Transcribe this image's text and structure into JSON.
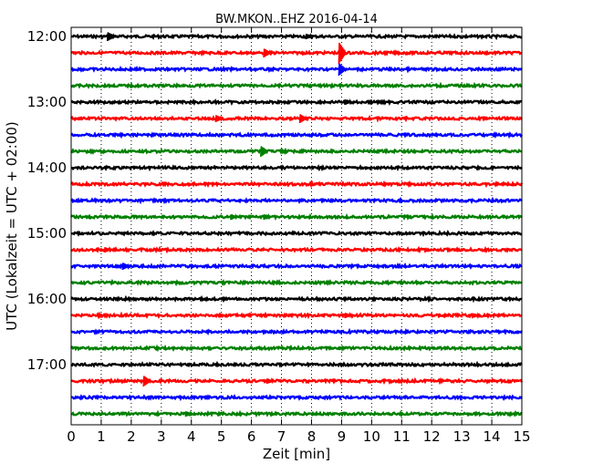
{
  "chart_data": {
    "type": "line",
    "title": "BW.MKON..EHZ 2016-04-14",
    "xlabel": "Zeit  [min]",
    "ylabel": "UTC (Lokalzeit = UTC + 02:00)",
    "xlim": [
      0,
      15
    ],
    "x_ticks": [
      "0",
      "1",
      "2",
      "3",
      "4",
      "5",
      "6",
      "7",
      "8",
      "9",
      "10",
      "11",
      "12",
      "13",
      "14",
      "15"
    ],
    "y_ticks": [
      "12:00",
      "13:00",
      "14:00",
      "15:00",
      "16:00",
      "17:00"
    ],
    "grid": "vertical dotted lines at each minute",
    "trace_colors": [
      "#000000",
      "#ff0000",
      "#0000ff",
      "#008000"
    ],
    "trace_interval_min": 15,
    "traces": [
      {
        "start": "12:00",
        "events": [
          {
            "t": 1.3,
            "amp": 5
          },
          {
            "t": 7.9,
            "amp": 3
          }
        ]
      },
      {
        "start": "12:15",
        "events": [
          {
            "t": 6.5,
            "amp": 5
          },
          {
            "t": 9.0,
            "amp": 12
          }
        ]
      },
      {
        "start": "12:30",
        "events": [
          {
            "t": 9.0,
            "amp": 7
          }
        ]
      },
      {
        "start": "12:45",
        "events": []
      },
      {
        "start": "13:00",
        "events": [
          {
            "t": 9.2,
            "amp": 3
          }
        ]
      },
      {
        "start": "13:15",
        "events": [
          {
            "t": 4.9,
            "amp": 4
          },
          {
            "t": 7.7,
            "amp": 5
          }
        ]
      },
      {
        "start": "13:30",
        "events": []
      },
      {
        "start": "13:45",
        "events": [
          {
            "t": 6.4,
            "amp": 6
          }
        ]
      },
      {
        "start": "14:00",
        "events": []
      },
      {
        "start": "14:15",
        "events": []
      },
      {
        "start": "14:30",
        "events": []
      },
      {
        "start": "14:45",
        "events": [
          {
            "t": 5.4,
            "amp": 3
          },
          {
            "t": 6.5,
            "amp": 3
          }
        ]
      },
      {
        "start": "15:00",
        "events": []
      },
      {
        "start": "15:15",
        "events": [
          {
            "t": 1.2,
            "amp": 3
          }
        ]
      },
      {
        "start": "15:30",
        "events": [
          {
            "t": 1.8,
            "amp": 4
          }
        ]
      },
      {
        "start": "15:45",
        "events": []
      },
      {
        "start": "16:00",
        "events": []
      },
      {
        "start": "16:15",
        "events": [
          {
            "t": 9.2,
            "amp": 3
          },
          {
            "t": 13.5,
            "amp": 2
          }
        ]
      },
      {
        "start": "16:30",
        "events": []
      },
      {
        "start": "16:45",
        "events": [
          {
            "t": 9.0,
            "amp": 2
          }
        ]
      },
      {
        "start": "17:00",
        "events": []
      },
      {
        "start": "17:15",
        "events": [
          {
            "t": 2.5,
            "amp": 6
          },
          {
            "t": 6.6,
            "amp": 3
          }
        ]
      },
      {
        "start": "17:30",
        "events": []
      },
      {
        "start": "17:45",
        "events": [
          {
            "t": 3.9,
            "amp": 3
          }
        ]
      }
    ]
  }
}
